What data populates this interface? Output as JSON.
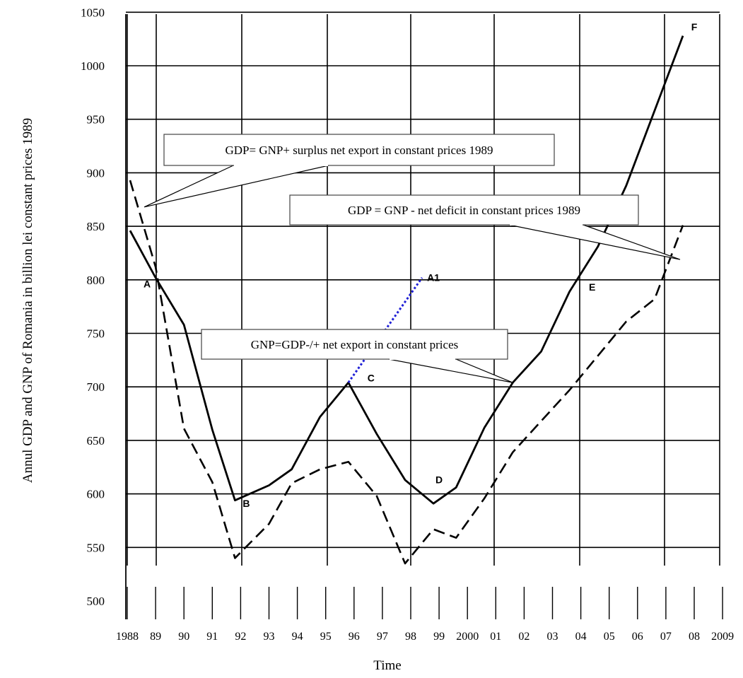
{
  "chart_data": {
    "type": "line",
    "ylabel": "Annul GDP and GNP of Romania in billion lei constant prices 1989",
    "xlabel": "Time",
    "ylim": [
      500,
      1050
    ],
    "y_ticks": [
      "500",
      "550",
      "600",
      "650",
      "700",
      "750",
      "800",
      "850",
      "900",
      "950",
      "1000",
      "1050"
    ],
    "x_tick_labels": [
      "1988",
      "89",
      "90",
      "91",
      "92",
      "93",
      "94",
      "95",
      "96",
      "97",
      "98",
      "99",
      "2000",
      "01",
      "02",
      "03",
      "04",
      "05",
      "06",
      "07",
      "08",
      "2009"
    ],
    "grid": true,
    "series": [
      {
        "style": "solid",
        "points": [
          [
            1988.1,
            846
          ],
          [
            1989.0,
            802
          ],
          [
            1990.0,
            758
          ],
          [
            1991.0,
            660
          ],
          [
            1991.8,
            594
          ],
          [
            1993.0,
            608
          ],
          [
            1993.8,
            623
          ],
          [
            1994.8,
            672
          ],
          [
            1995.8,
            704
          ],
          [
            1996.8,
            656
          ],
          [
            1997.8,
            613
          ],
          [
            1998.8,
            591
          ],
          [
            1999.6,
            606
          ],
          [
            2000.6,
            662
          ],
          [
            2001.6,
            704
          ],
          [
            2002.6,
            733
          ],
          [
            2003.6,
            789
          ],
          [
            2004.6,
            831
          ],
          [
            2005.6,
            888
          ],
          [
            2006.6,
            958
          ],
          [
            2007.6,
            1028
          ]
        ]
      },
      {
        "style": "dashed",
        "points": [
          [
            1988.1,
            893
          ],
          [
            1989.0,
            812
          ],
          [
            1990.0,
            661
          ],
          [
            1991.0,
            611
          ],
          [
            1991.8,
            540
          ],
          [
            1993.0,
            572
          ],
          [
            1993.8,
            610
          ],
          [
            1994.8,
            623
          ],
          [
            1995.8,
            630
          ],
          [
            1996.8,
            598
          ],
          [
            1997.8,
            535
          ],
          [
            1998.8,
            567
          ],
          [
            1999.6,
            559
          ],
          [
            2000.6,
            596
          ],
          [
            2001.6,
            639
          ],
          [
            2002.6,
            668
          ],
          [
            2003.6,
            697
          ],
          [
            2004.6,
            729
          ],
          [
            2005.6,
            761
          ],
          [
            2006.6,
            782
          ],
          [
            2007.6,
            851
          ]
        ]
      },
      {
        "style": "dotted",
        "color": "#1f1fd6",
        "points": [
          [
            1995.8,
            704
          ],
          [
            1998.4,
            802
          ]
        ]
      }
    ],
    "point_labels": [
      {
        "text": "A",
        "x": 1988.7,
        "y": 793
      },
      {
        "text": "B",
        "x": 1992.2,
        "y": 588
      },
      {
        "text": "C",
        "x": 1996.6,
        "y": 705
      },
      {
        "text": "D",
        "x": 1999.0,
        "y": 610
      },
      {
        "text": "E",
        "x": 2004.4,
        "y": 790
      },
      {
        "text": "F",
        "x": 2008.0,
        "y": 1033
      },
      {
        "text": "A1",
        "x": 1998.8,
        "y": 799
      }
    ],
    "annotations": [
      {
        "text": "GDP= GNP+ surplus net export in constant prices 1989",
        "pointer": [
          1988.6,
          868
        ]
      },
      {
        "text": "GDP = GNP  - net deficit in constant prices 1989",
        "pointer": [
          2007.5,
          819
        ]
      },
      {
        "text": "GNP=GDP-/+  net export in constant prices",
        "pointer": [
          2001.6,
          704
        ]
      }
    ]
  }
}
